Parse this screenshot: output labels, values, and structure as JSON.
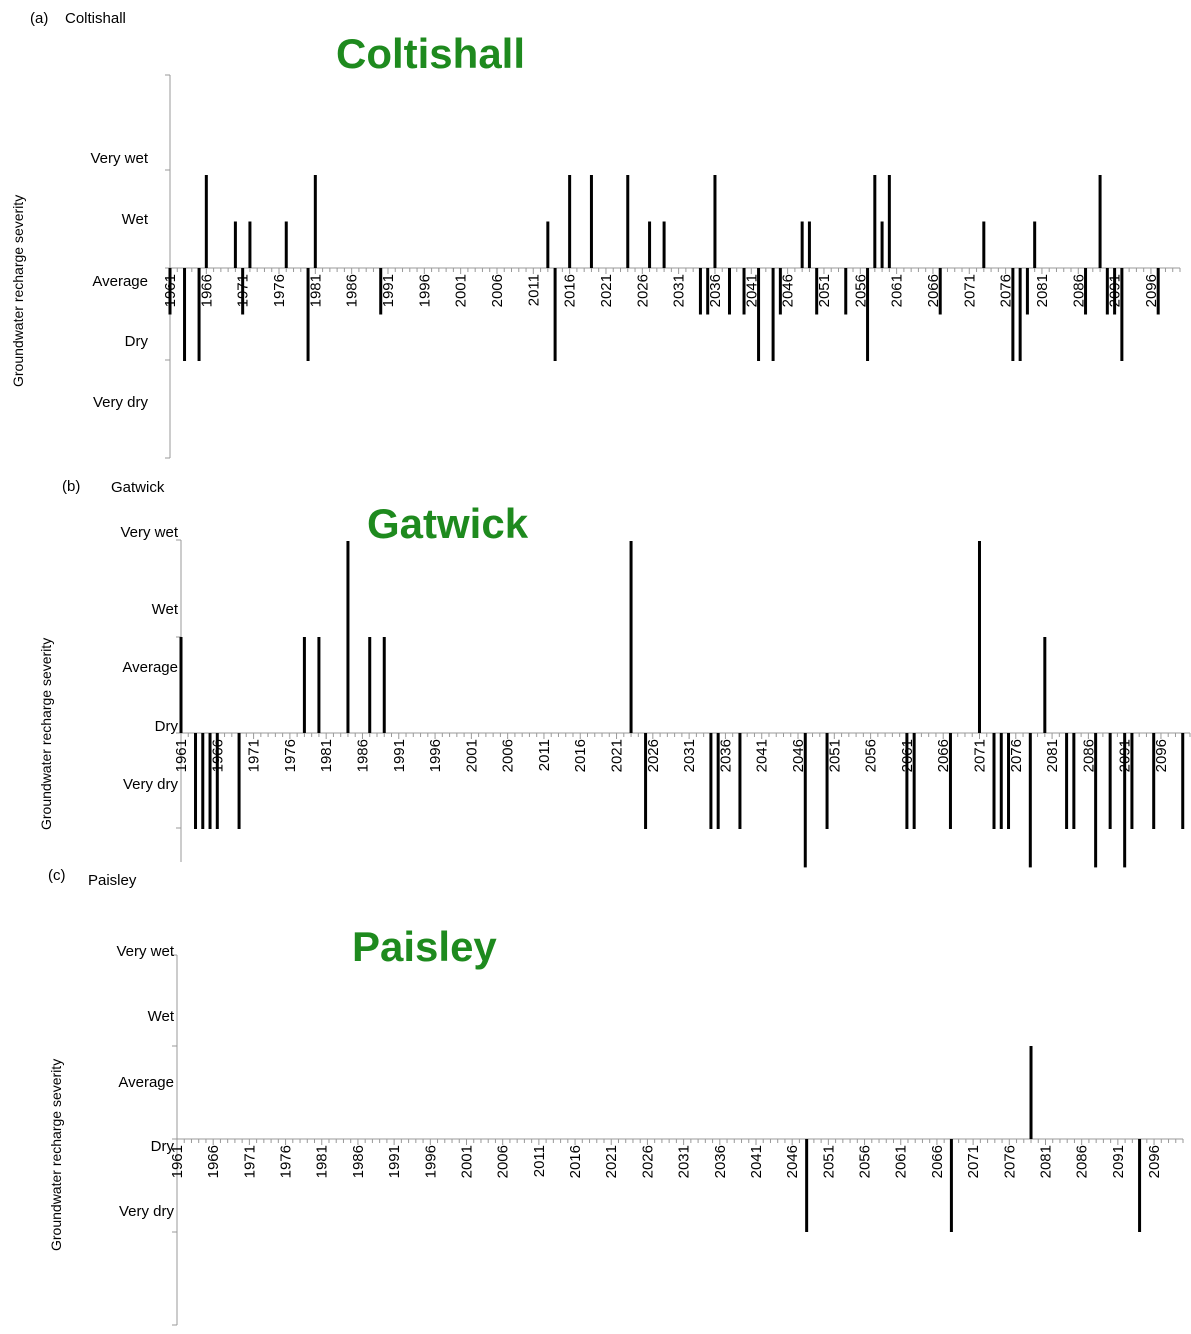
{
  "chart_data": [
    {
      "type": "bar",
      "panel_label": "(a)",
      "panel_title": "Coltishall",
      "title": "Coltishall",
      "xlabel": "",
      "ylabel": "Groundwater recharge severity",
      "category_levels": [
        "Very dry",
        "Dry",
        "Average",
        "Wet",
        "Very wet"
      ],
      "baseline_level": "Average",
      "ylim": [
        -3,
        3
      ],
      "x_range": [
        1961,
        2100
      ],
      "x_tick_labels": [
        "1961",
        "1966",
        "1971",
        "1976",
        "1981",
        "1986",
        "1991",
        "1996",
        "2001",
        "2006",
        "2011",
        "2016",
        "2021",
        "2026",
        "2031",
        "2036",
        "2041",
        "2046",
        "2051",
        "2056",
        "2061",
        "2066",
        "2071",
        "2076",
        "2081",
        "2086",
        "2091",
        "2096"
      ],
      "bars": [
        {
          "year": 1961,
          "value": -1.5
        },
        {
          "year": 1963,
          "value": -3
        },
        {
          "year": 1965,
          "value": -3
        },
        {
          "year": 1966,
          "value": 3
        },
        {
          "year": 1970,
          "value": 1.5
        },
        {
          "year": 1971,
          "value": -1.5
        },
        {
          "year": 1972,
          "value": 1.5
        },
        {
          "year": 1977,
          "value": 1.5
        },
        {
          "year": 1980,
          "value": -3
        },
        {
          "year": 1981,
          "value": 3
        },
        {
          "year": 1990,
          "value": -1.5
        },
        {
          "year": 2013,
          "value": 1.5
        },
        {
          "year": 2014,
          "value": -3
        },
        {
          "year": 2016,
          "value": 3
        },
        {
          "year": 2019,
          "value": 3
        },
        {
          "year": 2024,
          "value": 3
        },
        {
          "year": 2027,
          "value": 1.5
        },
        {
          "year": 2029,
          "value": 1.5
        },
        {
          "year": 2034,
          "value": -1.5
        },
        {
          "year": 2035,
          "value": -1.5
        },
        {
          "year": 2036,
          "value": 3
        },
        {
          "year": 2038,
          "value": -1.5
        },
        {
          "year": 2040,
          "value": -1.5
        },
        {
          "year": 2042,
          "value": -3
        },
        {
          "year": 2044,
          "value": -3
        },
        {
          "year": 2045,
          "value": -1.5
        },
        {
          "year": 2048,
          "value": 1.5
        },
        {
          "year": 2049,
          "value": 1.5
        },
        {
          "year": 2050,
          "value": -1.5
        },
        {
          "year": 2054,
          "value": -1.5
        },
        {
          "year": 2057,
          "value": -3
        },
        {
          "year": 2058,
          "value": 3
        },
        {
          "year": 2059,
          "value": 1.5
        },
        {
          "year": 2060,
          "value": 3
        },
        {
          "year": 2067,
          "value": -1.5
        },
        {
          "year": 2073,
          "value": 1.5
        },
        {
          "year": 2077,
          "value": -3
        },
        {
          "year": 2078,
          "value": -3
        },
        {
          "year": 2079,
          "value": -1.5
        },
        {
          "year": 2080,
          "value": 1.5
        },
        {
          "year": 2087,
          "value": -1.5
        },
        {
          "year": 2089,
          "value": 3
        },
        {
          "year": 2090,
          "value": -1.5
        },
        {
          "year": 2091,
          "value": -1.5
        },
        {
          "year": 2092,
          "value": -3
        },
        {
          "year": 2097,
          "value": -1.5
        }
      ]
    },
    {
      "type": "bar",
      "panel_label": "(b)",
      "panel_title": "Gatwick",
      "title": "Gatwick",
      "xlabel": "",
      "ylabel": "Groundwater recharge severity",
      "category_levels": [
        "Very dry",
        "Dry",
        "Average",
        "Wet",
        "Very wet"
      ],
      "baseline_level": "Dry",
      "ylim": [
        -1.4,
        2
      ],
      "x_range": [
        1961,
        2100
      ],
      "x_tick_labels": [
        "1961",
        "1966",
        "1971",
        "1976",
        "1981",
        "1986",
        "1991",
        "1996",
        "2001",
        "2006",
        "2011",
        "2016",
        "2021",
        "2026",
        "2031",
        "2036",
        "2041",
        "2046",
        "2051",
        "2056",
        "2061",
        "2066",
        "2071",
        "2076",
        "2081",
        "2086",
        "2091",
        "2096"
      ],
      "bars": [
        {
          "year": 1961,
          "value": 1
        },
        {
          "year": 1963,
          "value": -1
        },
        {
          "year": 1964,
          "value": -1
        },
        {
          "year": 1965,
          "value": -1
        },
        {
          "year": 1966,
          "value": -1
        },
        {
          "year": 1969,
          "value": -1
        },
        {
          "year": 1978,
          "value": 1
        },
        {
          "year": 1980,
          "value": 1
        },
        {
          "year": 1984,
          "value": 2
        },
        {
          "year": 1987,
          "value": 1
        },
        {
          "year": 1989,
          "value": 1
        },
        {
          "year": 2023,
          "value": 2
        },
        {
          "year": 2025,
          "value": -1
        },
        {
          "year": 2034,
          "value": -1
        },
        {
          "year": 2035,
          "value": -1
        },
        {
          "year": 2038,
          "value": -1
        },
        {
          "year": 2047,
          "value": -1.4
        },
        {
          "year": 2050,
          "value": -1
        },
        {
          "year": 2061,
          "value": -1
        },
        {
          "year": 2062,
          "value": -1
        },
        {
          "year": 2067,
          "value": -1
        },
        {
          "year": 2071,
          "value": 2
        },
        {
          "year": 2073,
          "value": -1
        },
        {
          "year": 2074,
          "value": -1
        },
        {
          "year": 2075,
          "value": -1
        },
        {
          "year": 2078,
          "value": -1.4
        },
        {
          "year": 2080,
          "value": 1
        },
        {
          "year": 2083,
          "value": -1
        },
        {
          "year": 2084,
          "value": -1
        },
        {
          "year": 2087,
          "value": -1.4
        },
        {
          "year": 2089,
          "value": -1
        },
        {
          "year": 2091,
          "value": -1.4
        },
        {
          "year": 2092,
          "value": -1
        },
        {
          "year": 2095,
          "value": -1
        },
        {
          "year": 2099,
          "value": -1
        },
        {
          "year": 2101,
          "value": -1
        }
      ]
    },
    {
      "type": "bar",
      "panel_label": "(c)",
      "panel_title": "Paisley",
      "title": "Paisley",
      "xlabel": "",
      "ylabel": "Groundwater recharge severity",
      "category_levels": [
        "Very dry",
        "Dry",
        "Average",
        "Wet",
        "Very wet"
      ],
      "baseline_level": "Dry",
      "ylim": [
        -2,
        2
      ],
      "x_range": [
        1961,
        2100
      ],
      "x_tick_labels": [
        "1961",
        "1966",
        "1971",
        "1976",
        "1981",
        "1986",
        "1991",
        "1996",
        "2001",
        "2006",
        "2011",
        "2016",
        "2021",
        "2026",
        "2031",
        "2036",
        "2041",
        "2046",
        "2051",
        "2056",
        "2061",
        "2066",
        "2071",
        "2076",
        "2081",
        "2086",
        "2091",
        "2096"
      ],
      "bars": [
        {
          "year": 2048,
          "value": -1
        },
        {
          "year": 2068,
          "value": -1
        },
        {
          "year": 2079,
          "value": 1
        },
        {
          "year": 2094,
          "value": -1
        }
      ]
    }
  ]
}
